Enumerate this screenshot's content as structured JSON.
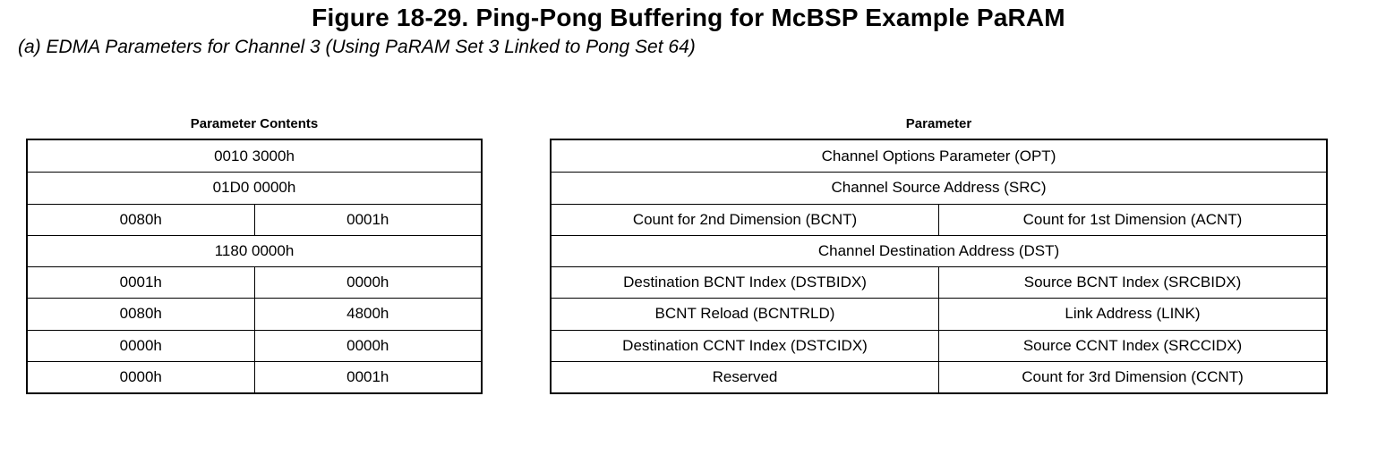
{
  "figure": {
    "title": "Figure 18-29. Ping-Pong Buffering for McBSP Example PaRAM",
    "subtitle": "(a) EDMA Parameters for Channel 3 (Using PaRAM Set 3 Linked to Pong Set 64)"
  },
  "colors": {
    "background": "#ffffff",
    "text": "#000000",
    "border": "#000000"
  },
  "tables": [
    {
      "id": "parameter-contents",
      "header": "Parameter Contents",
      "rows": [
        {
          "cells": [
            "0010 3000h"
          ]
        },
        {
          "cells": [
            "01D0 0000h"
          ]
        },
        {
          "cells": [
            "0080h",
            "0001h"
          ]
        },
        {
          "cells": [
            "1180 0000h"
          ]
        },
        {
          "cells": [
            "0001h",
            "0000h"
          ]
        },
        {
          "cells": [
            "0080h",
            "4800h"
          ]
        },
        {
          "cells": [
            "0000h",
            "0000h"
          ]
        },
        {
          "cells": [
            "0000h",
            "0001h"
          ]
        }
      ]
    },
    {
      "id": "parameter",
      "header": "Parameter",
      "rows": [
        {
          "cells": [
            "Channel Options Parameter (OPT)"
          ]
        },
        {
          "cells": [
            "Channel Source Address (SRC)"
          ]
        },
        {
          "cells": [
            "Count for 2nd Dimension (BCNT)",
            "Count for 1st Dimension (ACNT)"
          ]
        },
        {
          "cells": [
            "Channel Destination Address (DST)"
          ]
        },
        {
          "cells": [
            "Destination BCNT Index (DSTBIDX)",
            "Source BCNT Index (SRCBIDX)"
          ]
        },
        {
          "cells": [
            "BCNT Reload (BCNTRLD)",
            "Link Address (LINK)"
          ]
        },
        {
          "cells": [
            "Destination CCNT Index (DSTCIDX)",
            "Source CCNT Index (SRCCIDX)"
          ]
        },
        {
          "cells": [
            "Reserved",
            "Count for 3rd Dimension (CCNT)"
          ]
        }
      ]
    }
  ]
}
